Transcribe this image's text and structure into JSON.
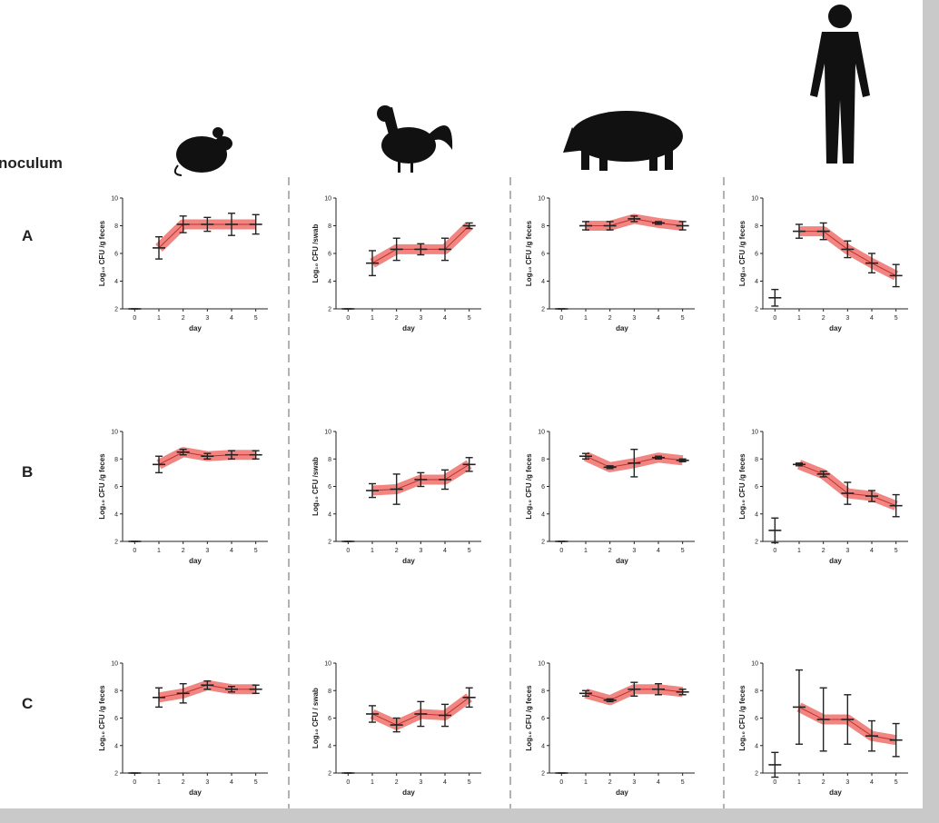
{
  "label": "noculum",
  "rows": [
    "A",
    "B",
    "C"
  ],
  "chart_data": [
    {
      "type": "line",
      "xlabel": "day",
      "ylabel": "Log₁₀ CFU /g feces",
      "x": [
        0,
        1,
        2,
        3,
        4,
        5
      ],
      "values": [
        null,
        6.4,
        8.1,
        8.1,
        8.1,
        8.1
      ],
      "errors": [
        null,
        0.8,
        0.6,
        0.5,
        0.8,
        0.7
      ],
      "day0": 2,
      "day0_error": 0,
      "xlim": [
        -0.5,
        5.5
      ],
      "ylim": [
        2,
        10
      ],
      "xticks": [
        0,
        1,
        2,
        3,
        4,
        5
      ],
      "yticks": [
        2,
        4,
        6,
        8,
        10
      ],
      "color": "#e8433f"
    },
    {
      "type": "line",
      "xlabel": "day",
      "ylabel": "Log₁₀ CFU /swab",
      "x": [
        0,
        1,
        2,
        3,
        4,
        5
      ],
      "values": [
        null,
        5.3,
        6.3,
        6.3,
        6.3,
        8.0
      ],
      "errors": [
        null,
        0.9,
        0.8,
        0.4,
        0.8,
        0.2
      ],
      "day0": 2,
      "day0_error": 0,
      "xlim": [
        -0.5,
        5.5
      ],
      "ylim": [
        2,
        10
      ],
      "xticks": [
        0,
        1,
        2,
        3,
        4,
        5
      ],
      "yticks": [
        2,
        4,
        6,
        8,
        10
      ],
      "color": "#e8433f"
    },
    {
      "type": "line",
      "xlabel": "day",
      "ylabel": "Log₁₀ CFU /g feces",
      "x": [
        0,
        1,
        2,
        3,
        4,
        5
      ],
      "values": [
        null,
        8.0,
        8.0,
        8.5,
        8.2,
        8.0
      ],
      "errors": [
        null,
        0.3,
        0.3,
        0.2,
        0.1,
        0.3
      ],
      "day0": 2,
      "day0_error": 0,
      "xlim": [
        -0.5,
        5.5
      ],
      "ylim": [
        2,
        10
      ],
      "xticks": [
        0,
        1,
        2,
        3,
        4,
        5
      ],
      "yticks": [
        2,
        4,
        6,
        8,
        10
      ],
      "color": "#e8433f"
    },
    {
      "type": "line",
      "xlabel": "day",
      "ylabel": "Log₁₀ CFU /g feces",
      "x": [
        0,
        1,
        2,
        3,
        4,
        5
      ],
      "values": [
        null,
        7.6,
        7.6,
        6.3,
        5.3,
        4.4
      ],
      "errors": [
        null,
        0.5,
        0.6,
        0.6,
        0.7,
        0.8
      ],
      "day0": 2.8,
      "day0_error": 0.6,
      "xlim": [
        -0.5,
        5.5
      ],
      "ylim": [
        2,
        10
      ],
      "xticks": [
        0,
        1,
        2,
        3,
        4,
        5
      ],
      "yticks": [
        2,
        4,
        6,
        8,
        10
      ],
      "color": "#e8433f"
    },
    {
      "type": "line",
      "xlabel": "day",
      "ylabel": "Log₁₀ CFU /g feces",
      "x": [
        0,
        1,
        2,
        3,
        4,
        5
      ],
      "values": [
        null,
        7.6,
        8.5,
        8.2,
        8.3,
        8.3
      ],
      "errors": [
        null,
        0.6,
        0.2,
        0.2,
        0.3,
        0.3
      ],
      "day0": 2,
      "day0_error": 0,
      "xlim": [
        -0.5,
        5.5
      ],
      "ylim": [
        2,
        10
      ],
      "xticks": [
        0,
        1,
        2,
        3,
        4,
        5
      ],
      "yticks": [
        2,
        4,
        6,
        8,
        10
      ],
      "color": "#e8433f"
    },
    {
      "type": "line",
      "xlabel": "day",
      "ylabel": "Log₁₀ CFU /swab",
      "x": [
        0,
        1,
        2,
        3,
        4,
        5
      ],
      "values": [
        null,
        5.7,
        5.8,
        6.5,
        6.5,
        7.6
      ],
      "errors": [
        null,
        0.5,
        1.1,
        0.5,
        0.7,
        0.5
      ],
      "day0": 2,
      "day0_error": 0,
      "xlim": [
        -0.5,
        5.5
      ],
      "ylim": [
        2,
        10
      ],
      "xticks": [
        0,
        1,
        2,
        3,
        4,
        5
      ],
      "yticks": [
        2,
        4,
        6,
        8,
        10
      ],
      "color": "#e8433f"
    },
    {
      "type": "line",
      "xlabel": "day",
      "ylabel": "Log₁₀ CFU /g feces",
      "x": [
        0,
        1,
        2,
        3,
        4,
        5
      ],
      "values": [
        null,
        8.2,
        7.4,
        7.7,
        8.1,
        7.9
      ],
      "errors": [
        null,
        0.2,
        0.1,
        1.0,
        0.1,
        0.1
      ],
      "day0": 2,
      "day0_error": 0,
      "xlim": [
        -0.5,
        5.5
      ],
      "ylim": [
        2,
        10
      ],
      "xticks": [
        0,
        1,
        2,
        3,
        4,
        5
      ],
      "yticks": [
        2,
        4,
        6,
        8,
        10
      ],
      "color": "#e8433f"
    },
    {
      "type": "line",
      "xlabel": "day",
      "ylabel": "Log₁₀ CFU /g feces",
      "x": [
        0,
        1,
        2,
        3,
        4,
        5
      ],
      "values": [
        null,
        7.6,
        6.9,
        5.5,
        5.3,
        4.6
      ],
      "errors": [
        null,
        0.1,
        0.2,
        0.8,
        0.4,
        0.8
      ],
      "day0": 2.8,
      "day0_error": 0.9,
      "xlim": [
        -0.5,
        5.5
      ],
      "ylim": [
        2,
        10
      ],
      "xticks": [
        0,
        1,
        2,
        3,
        4,
        5
      ],
      "yticks": [
        2,
        4,
        6,
        8,
        10
      ],
      "color": "#e8433f"
    },
    {
      "type": "line",
      "xlabel": "day",
      "ylabel": "Log₁₀ CFU /g feces",
      "x": [
        0,
        1,
        2,
        3,
        4,
        5
      ],
      "values": [
        null,
        7.5,
        7.8,
        8.4,
        8.1,
        8.1
      ],
      "errors": [
        null,
        0.7,
        0.7,
        0.3,
        0.2,
        0.3
      ],
      "day0": 2,
      "day0_error": 0,
      "xlim": [
        -0.5,
        5.5
      ],
      "ylim": [
        2,
        10
      ],
      "xticks": [
        0,
        1,
        2,
        3,
        4,
        5
      ],
      "yticks": [
        2,
        4,
        6,
        8,
        10
      ],
      "color": "#e8433f"
    },
    {
      "type": "line",
      "xlabel": "day",
      "ylabel": "Log₁₀ CFU / swab",
      "x": [
        0,
        1,
        2,
        3,
        4,
        5
      ],
      "values": [
        null,
        6.3,
        5.5,
        6.3,
        6.2,
        7.5
      ],
      "errors": [
        null,
        0.6,
        0.5,
        0.9,
        0.8,
        0.7
      ],
      "day0": 2,
      "day0_error": 0,
      "xlim": [
        -0.5,
        5.5
      ],
      "ylim": [
        2,
        10
      ],
      "xticks": [
        0,
        1,
        2,
        3,
        4,
        5
      ],
      "yticks": [
        2,
        4,
        6,
        8,
        10
      ],
      "color": "#e8433f"
    },
    {
      "type": "line",
      "xlabel": "day",
      "ylabel": "Log₁₀ CFU /g feces",
      "x": [
        0,
        1,
        2,
        3,
        4,
        5
      ],
      "values": [
        null,
        7.8,
        7.3,
        8.1,
        8.1,
        7.9
      ],
      "errors": [
        null,
        0.2,
        0.1,
        0.5,
        0.4,
        0.2
      ],
      "day0": 2,
      "day0_error": 0,
      "xlim": [
        -0.5,
        5.5
      ],
      "ylim": [
        2,
        10
      ],
      "xticks": [
        0,
        1,
        2,
        3,
        4,
        5
      ],
      "yticks": [
        2,
        4,
        6,
        8,
        10
      ],
      "color": "#e8433f"
    },
    {
      "type": "line",
      "xlabel": "day",
      "ylabel": "Log₁₀ CFU /g feces",
      "x": [
        0,
        1,
        2,
        3,
        4,
        5
      ],
      "values": [
        null,
        6.8,
        5.9,
        5.9,
        4.7,
        4.4
      ],
      "errors": [
        null,
        2.7,
        2.3,
        1.8,
        1.1,
        1.2
      ],
      "day0": 2.6,
      "day0_error": 0.9,
      "xlim": [
        -0.5,
        5.5
      ],
      "ylim": [
        2,
        10
      ],
      "xticks": [
        0,
        1,
        2,
        3,
        4,
        5
      ],
      "yticks": [
        2,
        4,
        6,
        8,
        10
      ],
      "color": "#e8433f"
    }
  ]
}
